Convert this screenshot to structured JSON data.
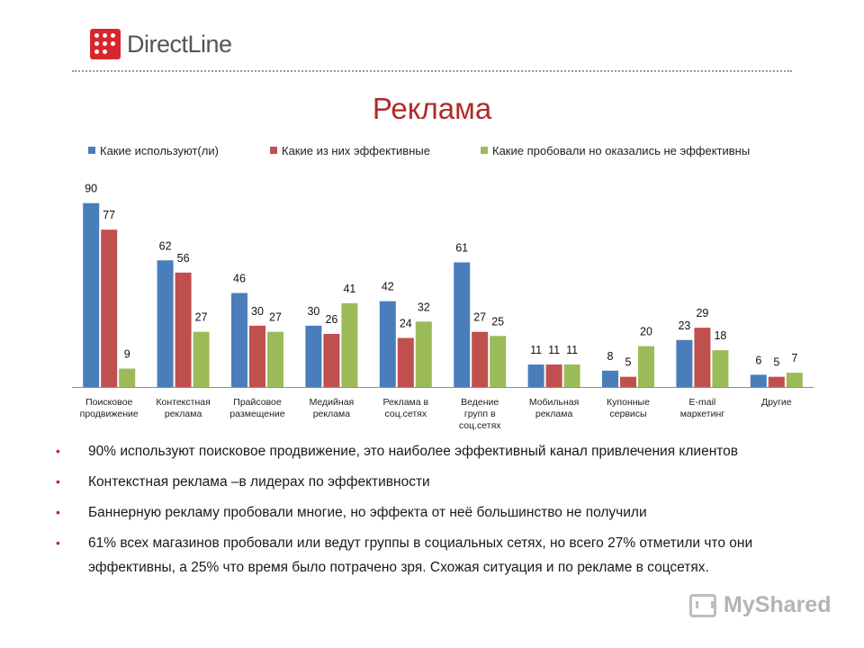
{
  "header": {
    "logo_text": "DirectLine",
    "title": "Реклама"
  },
  "colors": {
    "series1": "#4a7ebb",
    "series2": "#c0504d",
    "series3": "#9bbb59",
    "title": "#b12a28",
    "logo": "#d7262f"
  },
  "chart_data": {
    "type": "bar",
    "title": "",
    "xlabel": "",
    "ylabel": "",
    "ylim": [
      0,
      100
    ],
    "grid": false,
    "legend_position": "top",
    "categories": [
      [
        "Поисковое",
        "продвижение"
      ],
      [
        "Контекстная",
        "реклама"
      ],
      [
        "Прайсовое",
        "размещение"
      ],
      [
        "Медийная",
        "реклама"
      ],
      [
        "Реклама в",
        "соц.сетях"
      ],
      [
        "Ведение",
        "групп в",
        "соц.сетях"
      ],
      [
        "Мобильная",
        "реклама"
      ],
      [
        "Купонные",
        "сервисы"
      ],
      [
        "E-mail",
        "маркетинг"
      ],
      [
        "Другие"
      ]
    ],
    "series": [
      {
        "name": "Какие используют(ли)",
        "values": [
          90,
          62,
          46,
          30,
          42,
          61,
          11,
          8,
          23,
          6
        ]
      },
      {
        "name": "Какие из них эффективные",
        "values": [
          77,
          56,
          30,
          26,
          24,
          27,
          11,
          5,
          29,
          5
        ]
      },
      {
        "name": "Какие пробовали но оказались не эффективны",
        "values": [
          9,
          27,
          27,
          41,
          32,
          25,
          11,
          20,
          18,
          7
        ]
      }
    ]
  },
  "bullets": [
    "90% используют поисковое продвижение, это наиболее эффективный канал  привлечения клиентов",
    "Контекстная реклама –в лидерах по эффективности",
    "Баннерную рекламу пробовали многие, но эффекта от неё большинство не получили",
    "61% всех магазинов пробовали или ведут группы в социальных сетях, но всего 27% отметили что они эффективны, а 25% что время было потрачено зря. Схожая ситуация и по рекламе в соцсетях."
  ],
  "watermark": {
    "text": "MyShared",
    "icon": "myshared-icon"
  }
}
